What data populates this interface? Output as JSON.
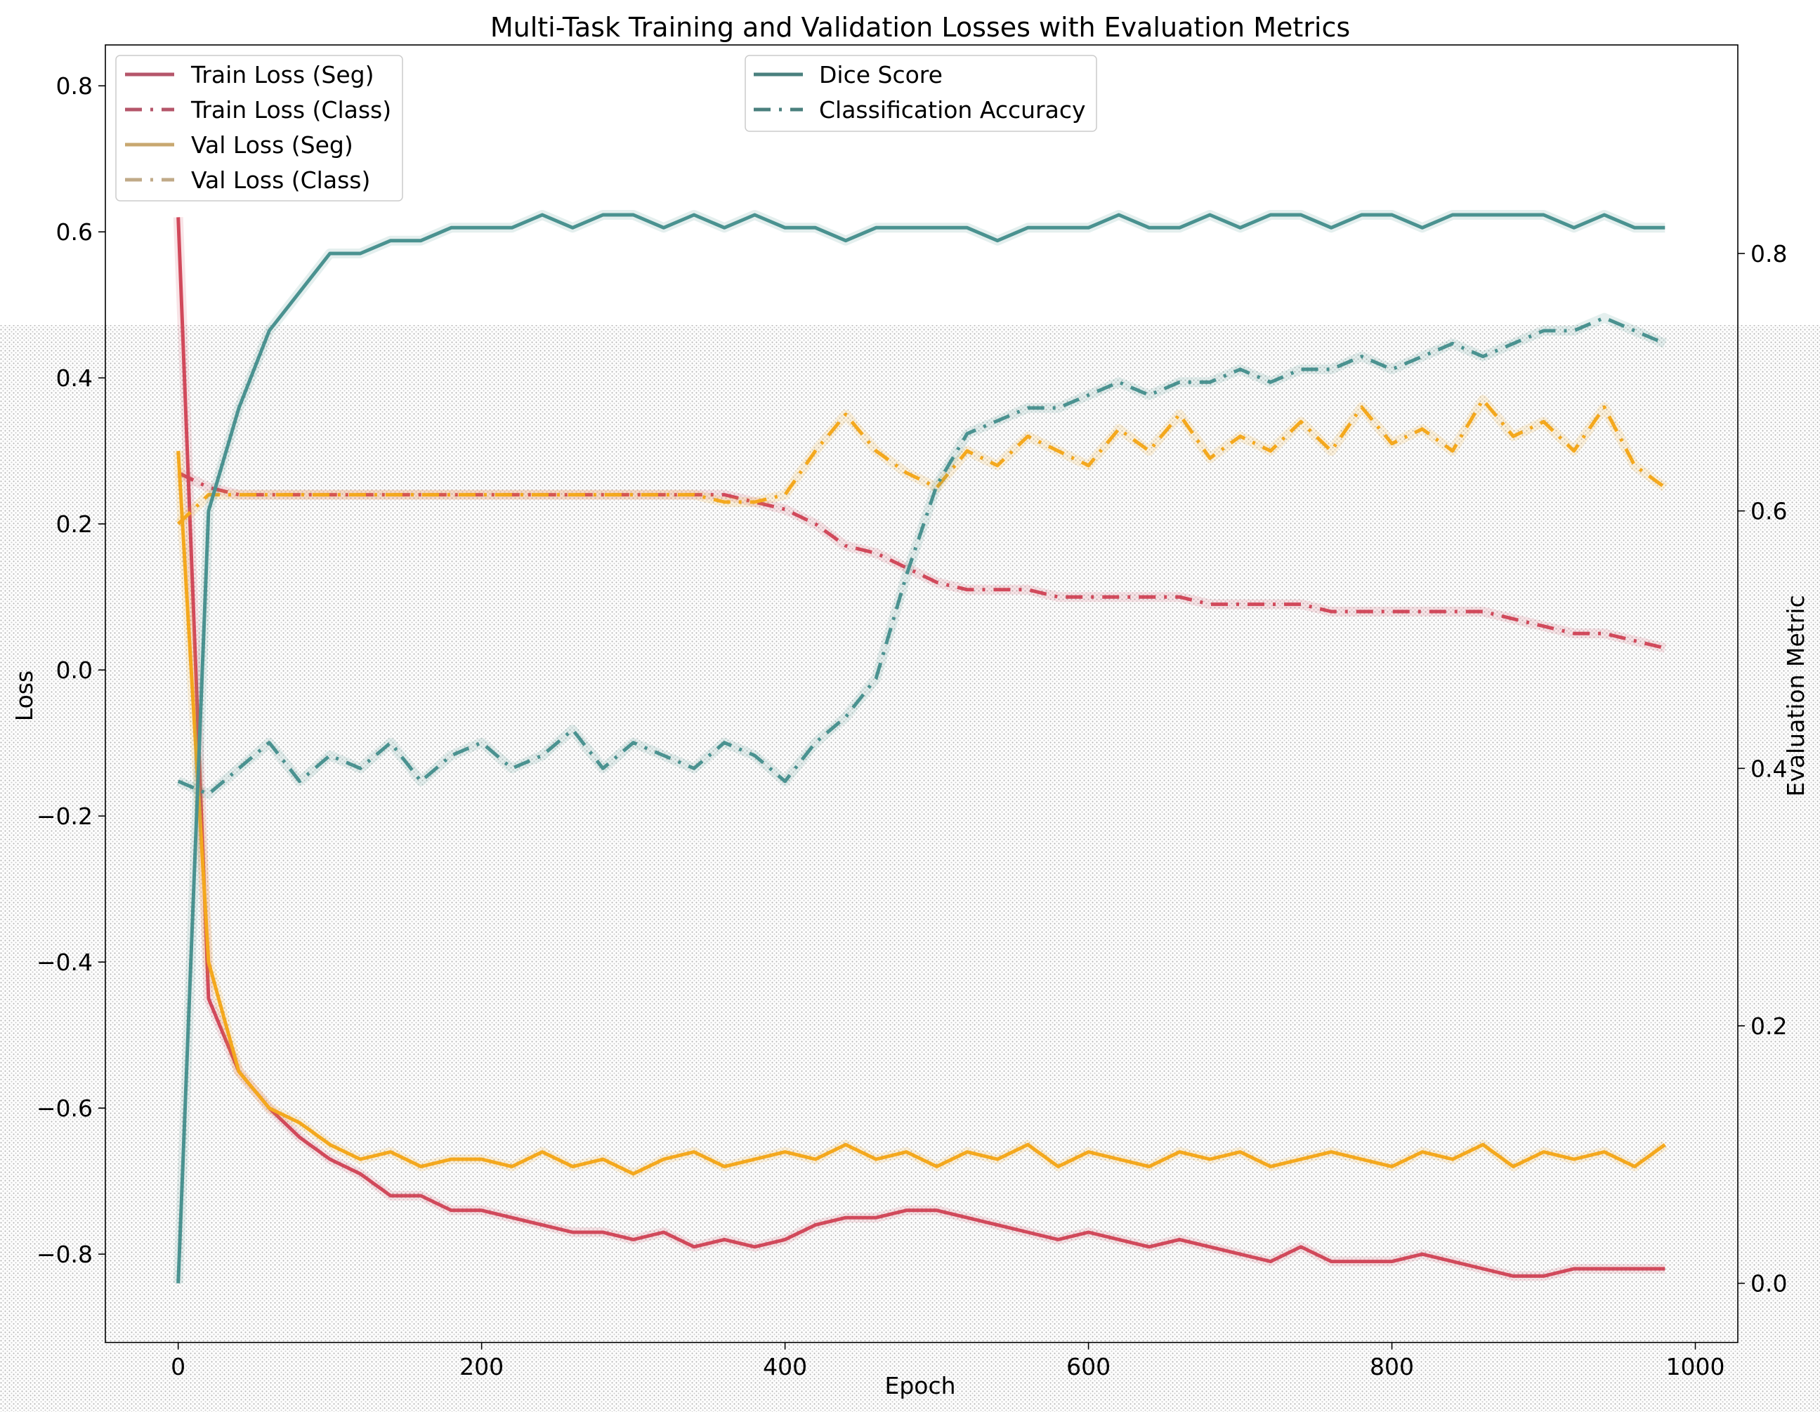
{
  "chart_data": {
    "type": "line",
    "title": "Multi-Task Training and Validation Losses with Evaluation Metrics",
    "xlabel": "Epoch",
    "ylabel": "Loss",
    "ylabel_right": "Evaluation Metric",
    "xlim": [
      -48,
      1028
    ],
    "ylim": [
      -0.921,
      0.856
    ],
    "ylim_right": [
      -0.046,
      0.962
    ],
    "xticks": [
      0,
      200,
      400,
      600,
      800,
      1000
    ],
    "yticks": [
      -0.8,
      -0.6,
      -0.4,
      -0.2,
      0.0,
      0.2,
      0.4,
      0.6,
      0.8
    ],
    "yticks_right": [
      0.0,
      0.2,
      0.4,
      0.6,
      0.8
    ],
    "xtick_labels": [
      "0",
      "200",
      "400",
      "600",
      "800",
      "1000"
    ],
    "ytick_labels": [
      "−0.8",
      "−0.6",
      "−0.4",
      "−0.2",
      "0.0",
      "0.2",
      "0.4",
      "0.6",
      "0.8"
    ],
    "ytick_labels_right": [
      "0.0",
      "0.2",
      "0.4",
      "0.6",
      "0.8"
    ],
    "grid": false,
    "x": [
      0,
      20,
      40,
      60,
      80,
      100,
      120,
      140,
      160,
      180,
      200,
      220,
      240,
      260,
      280,
      300,
      320,
      340,
      360,
      380,
      400,
      420,
      440,
      460,
      480,
      500,
      520,
      540,
      560,
      580,
      600,
      620,
      640,
      660,
      680,
      700,
      720,
      740,
      760,
      780,
      800,
      820,
      840,
      860,
      880,
      900,
      920,
      940,
      960,
      980
    ],
    "series": [
      {
        "name": "Train Loss (Seg)",
        "axis": "left",
        "style": "solid",
        "color": "#d1495b",
        "values": [
          0.62,
          -0.45,
          -0.55,
          -0.6,
          -0.64,
          -0.67,
          -0.69,
          -0.72,
          -0.72,
          -0.74,
          -0.74,
          -0.75,
          -0.76,
          -0.77,
          -0.77,
          -0.78,
          -0.77,
          -0.79,
          -0.78,
          -0.79,
          -0.78,
          -0.76,
          -0.75,
          -0.75,
          -0.74,
          -0.74,
          -0.75,
          -0.76,
          -0.77,
          -0.78,
          -0.77,
          -0.78,
          -0.79,
          -0.78,
          -0.79,
          -0.8,
          -0.81,
          -0.79,
          -0.81,
          -0.81,
          -0.81,
          -0.8,
          -0.81,
          -0.82,
          -0.83,
          -0.83,
          -0.82,
          -0.82,
          -0.82,
          -0.82
        ]
      },
      {
        "name": "Train Loss (Class)",
        "axis": "left",
        "style": "dashdot",
        "color": "#d1495b",
        "values": [
          0.27,
          0.25,
          0.24,
          0.24,
          0.24,
          0.24,
          0.24,
          0.24,
          0.24,
          0.24,
          0.24,
          0.24,
          0.24,
          0.24,
          0.24,
          0.24,
          0.24,
          0.24,
          0.24,
          0.23,
          0.22,
          0.2,
          0.17,
          0.16,
          0.14,
          0.12,
          0.11,
          0.11,
          0.11,
          0.1,
          0.1,
          0.1,
          0.1,
          0.1,
          0.09,
          0.09,
          0.09,
          0.09,
          0.08,
          0.08,
          0.08,
          0.08,
          0.08,
          0.08,
          0.07,
          0.06,
          0.05,
          0.05,
          0.04,
          0.03
        ]
      },
      {
        "name": "Val Loss (Seg)",
        "axis": "left",
        "style": "solid",
        "color": "#f4a81d",
        "values": [
          0.3,
          -0.4,
          -0.55,
          -0.6,
          -0.62,
          -0.65,
          -0.67,
          -0.66,
          -0.68,
          -0.67,
          -0.67,
          -0.68,
          -0.66,
          -0.68,
          -0.67,
          -0.69,
          -0.67,
          -0.66,
          -0.68,
          -0.67,
          -0.66,
          -0.67,
          -0.65,
          -0.67,
          -0.66,
          -0.68,
          -0.66,
          -0.67,
          -0.65,
          -0.68,
          -0.66,
          -0.67,
          -0.68,
          -0.66,
          -0.67,
          -0.66,
          -0.68,
          -0.67,
          -0.66,
          -0.67,
          -0.68,
          -0.66,
          -0.67,
          -0.65,
          -0.68,
          -0.66,
          -0.67,
          -0.66,
          -0.68,
          -0.65
        ]
      },
      {
        "name": "Val Loss (Class)",
        "axis": "left",
        "style": "dashdot",
        "color": "#f4a81d",
        "values": [
          0.2,
          0.24,
          0.24,
          0.24,
          0.24,
          0.24,
          0.24,
          0.24,
          0.24,
          0.24,
          0.24,
          0.24,
          0.24,
          0.24,
          0.24,
          0.24,
          0.24,
          0.24,
          0.23,
          0.23,
          0.24,
          0.3,
          0.35,
          0.3,
          0.27,
          0.25,
          0.3,
          0.28,
          0.32,
          0.3,
          0.28,
          0.33,
          0.3,
          0.35,
          0.29,
          0.32,
          0.3,
          0.34,
          0.3,
          0.36,
          0.31,
          0.33,
          0.3,
          0.37,
          0.32,
          0.34,
          0.3,
          0.36,
          0.28,
          0.25
        ]
      },
      {
        "name": "Dice Score",
        "axis": "right",
        "style": "solid",
        "color": "#4a9290",
        "values": [
          0.0,
          0.6,
          0.68,
          0.74,
          0.77,
          0.8,
          0.8,
          0.81,
          0.81,
          0.82,
          0.82,
          0.82,
          0.83,
          0.82,
          0.83,
          0.83,
          0.82,
          0.83,
          0.82,
          0.83,
          0.82,
          0.82,
          0.81,
          0.82,
          0.82,
          0.82,
          0.82,
          0.81,
          0.82,
          0.82,
          0.82,
          0.83,
          0.82,
          0.82,
          0.83,
          0.82,
          0.83,
          0.83,
          0.82,
          0.83,
          0.83,
          0.82,
          0.83,
          0.83,
          0.83,
          0.83,
          0.82,
          0.83,
          0.82,
          0.82
        ]
      },
      {
        "name": "Classification Accuracy",
        "axis": "right",
        "style": "dashdot",
        "color": "#4a9290",
        "values": [
          0.39,
          0.38,
          0.4,
          0.42,
          0.39,
          0.41,
          0.4,
          0.42,
          0.39,
          0.41,
          0.42,
          0.4,
          0.41,
          0.43,
          0.4,
          0.42,
          0.41,
          0.4,
          0.42,
          0.41,
          0.39,
          0.42,
          0.44,
          0.47,
          0.55,
          0.62,
          0.66,
          0.67,
          0.68,
          0.68,
          0.69,
          0.7,
          0.69,
          0.7,
          0.7,
          0.71,
          0.7,
          0.71,
          0.71,
          0.72,
          0.71,
          0.72,
          0.73,
          0.72,
          0.73,
          0.74,
          0.74,
          0.75,
          0.74,
          0.73
        ]
      }
    ],
    "legends": [
      {
        "placement": "upper-left",
        "entries": [
          "Train Loss (Seg)",
          "Train Loss (Class)",
          "Val Loss (Seg)",
          "Val Loss (Class)"
        ]
      },
      {
        "placement": "upper-center",
        "entries": [
          "Dice Score",
          "Classification Accuracy"
        ]
      }
    ]
  }
}
